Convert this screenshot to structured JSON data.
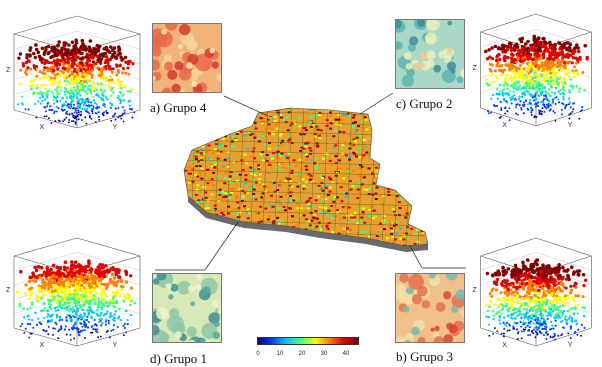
{
  "groups": [
    {
      "id": "a",
      "label": "a) Grupo 4"
    },
    {
      "id": "b",
      "label": "b) Grupo 3"
    },
    {
      "id": "c",
      "label": "c) Grupo 2"
    },
    {
      "id": "d",
      "label": "d) Grupo 1"
    }
  ],
  "colorbar": {
    "ticks": [
      "0",
      "10",
      "20",
      "30",
      "40"
    ],
    "colors": [
      "#00008b",
      "#0040ff",
      "#00c8ff",
      "#40ff80",
      "#ffff00",
      "#ff8000",
      "#e00000",
      "#800000"
    ]
  },
  "axis_letters": {
    "z": "Z",
    "x": "X",
    "y": "Y"
  }
}
